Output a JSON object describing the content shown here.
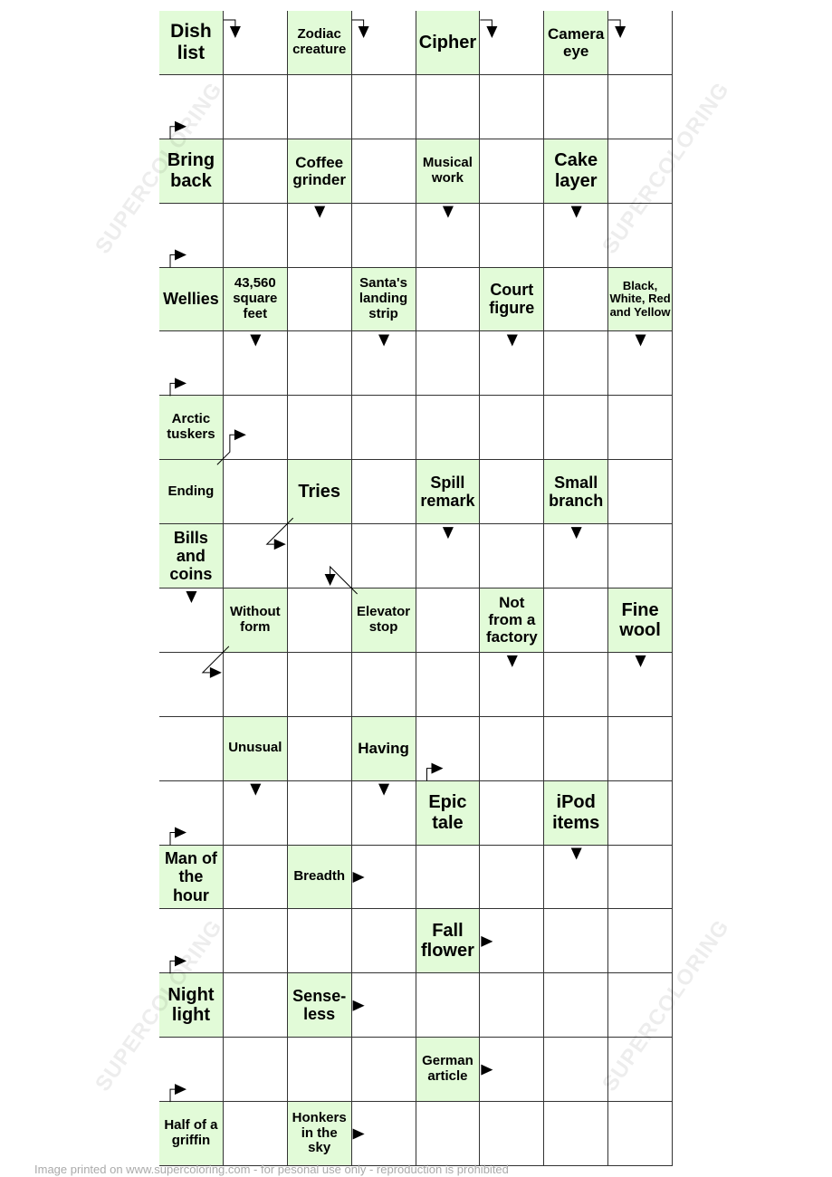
{
  "puzzle": {
    "columns": 8,
    "rows": 18,
    "clue_color": "#e2fbd8",
    "clues": [
      {
        "row": 0,
        "col": 0,
        "text": "Dish list",
        "arrow": "right-down"
      },
      {
        "row": 0,
        "col": 2,
        "text": "Zodiac creature",
        "arrow": "right-down"
      },
      {
        "row": 0,
        "col": 4,
        "text": "Cipher",
        "arrow": "right-down"
      },
      {
        "row": 0,
        "col": 6,
        "text": "Camera eye",
        "arrow": "right-down"
      },
      {
        "row": 2,
        "col": 0,
        "text": "Bring back",
        "arrow": "up-right"
      },
      {
        "row": 2,
        "col": 2,
        "text": "Coffee grinder",
        "arrow": "down"
      },
      {
        "row": 2,
        "col": 4,
        "text": "Musical work",
        "arrow": "down"
      },
      {
        "row": 2,
        "col": 6,
        "text": "Cake layer",
        "arrow": "down"
      },
      {
        "row": 4,
        "col": 0,
        "text": "Wellies",
        "arrow": "up-right"
      },
      {
        "row": 4,
        "col": 1,
        "text": "43,560 square feet",
        "arrow": "down"
      },
      {
        "row": 4,
        "col": 3,
        "text": "Santa's landing strip",
        "arrow": "down"
      },
      {
        "row": 4,
        "col": 5,
        "text": "Court figure",
        "arrow": "down"
      },
      {
        "row": 4,
        "col": 7,
        "text": "Black, White, Red and Yellow",
        "arrow": "down"
      },
      {
        "row": 6,
        "col": 0,
        "text": "Arctic tuskers",
        "arrow": "up-right"
      },
      {
        "row": 7,
        "col": 0,
        "text": "Ending",
        "arrow": "diagonal-up-right"
      },
      {
        "row": 7,
        "col": 2,
        "text": "Tries",
        "arrow": "diagonal-down-left-right"
      },
      {
        "row": 7,
        "col": 4,
        "text": "Spill remark",
        "arrow": "down"
      },
      {
        "row": 7,
        "col": 6,
        "text": "Small branch",
        "arrow": "down"
      },
      {
        "row": 8,
        "col": 0,
        "text": "Bills and coins",
        "arrow": "down"
      },
      {
        "row": 9,
        "col": 1,
        "text": "Without form",
        "arrow": "diagonal-down-left-right"
      },
      {
        "row": 9,
        "col": 3,
        "text": "Elevator stop",
        "arrow": "diagonal-up-left-down"
      },
      {
        "row": 9,
        "col": 5,
        "text": "Not from a factory",
        "arrow": "down"
      },
      {
        "row": 9,
        "col": 7,
        "text": "Fine wool",
        "arrow": "down"
      },
      {
        "row": 11,
        "col": 1,
        "text": "Unusual",
        "arrow": "down"
      },
      {
        "row": 11,
        "col": 3,
        "text": "Having",
        "arrow": "down"
      },
      {
        "row": 12,
        "col": 4,
        "text": "Epic tale",
        "arrow": "up-right"
      },
      {
        "row": 12,
        "col": 6,
        "text": "iPod items",
        "arrow": "down"
      },
      {
        "row": 13,
        "col": 0,
        "text": "Man of the hour",
        "arrow": "up-right"
      },
      {
        "row": 13,
        "col": 2,
        "text": "Breadth",
        "arrow": "right"
      },
      {
        "row": 14,
        "col": 4,
        "text": "Fall flower",
        "arrow": "right"
      },
      {
        "row": 15,
        "col": 0,
        "text": "Night light",
        "arrow": "up-right"
      },
      {
        "row": 15,
        "col": 2,
        "text": "Sense-less",
        "arrow": "right"
      },
      {
        "row": 16,
        "col": 4,
        "text": "German article",
        "arrow": "right"
      },
      {
        "row": 17,
        "col": 0,
        "text": "Half of a griffin",
        "arrow": "up-right"
      },
      {
        "row": 17,
        "col": 2,
        "text": "Honkers in the sky",
        "arrow": "right"
      }
    ]
  },
  "watermark": "SUPERCOLORING",
  "footer": "Image printed on www.supercoloring.com - for pesonal use only - reproduction is prohibited"
}
